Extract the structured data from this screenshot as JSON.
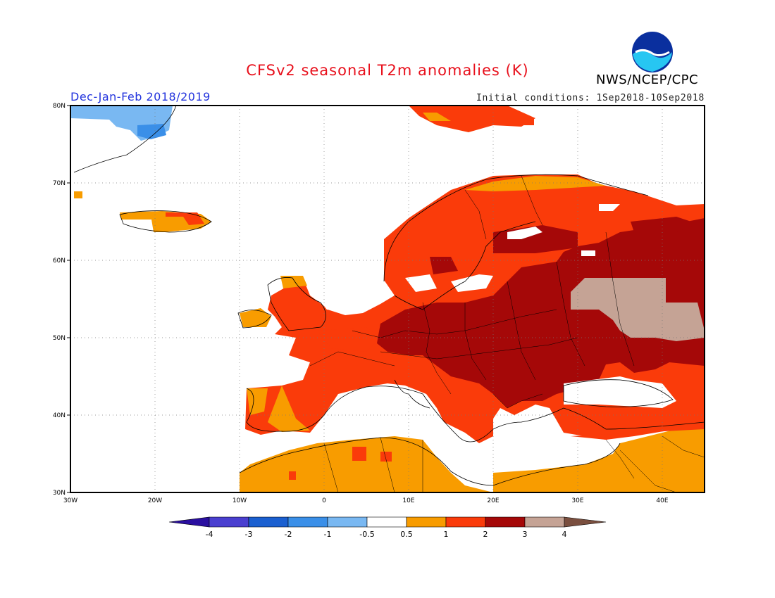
{
  "header": {
    "title": "CFSv2 seasonal T2m anomalies (K)",
    "org": "NWS/NCEP/CPC",
    "season": "Dec-Jan-Feb 2018/2019",
    "initial_conditions": "Initial conditions: 1Sep2018-10Sep2018",
    "logo_text": "NOAA"
  },
  "map": {
    "lat_ticks": [
      "80N",
      "70N",
      "60N",
      "50N",
      "40N",
      "30N"
    ],
    "lon_ticks": [
      "30W",
      "20W",
      "10W",
      "0",
      "10E",
      "20E",
      "30E",
      "40E"
    ],
    "grid": "dotted"
  },
  "legend": {
    "tick_labels": [
      "-4",
      "-3",
      "-2",
      "-1",
      "-0.5",
      "0.5",
      "1",
      "2",
      "3",
      "4"
    ],
    "colors": [
      "#2a0fa0",
      "#4a3fd0",
      "#1a5fd0",
      "#3a8fe8",
      "#79b8f2",
      "#ffffff",
      "#f89c00",
      "#fa3b0a",
      "#a50808",
      "#c5a395",
      "#7a4f3f"
    ]
  }
}
